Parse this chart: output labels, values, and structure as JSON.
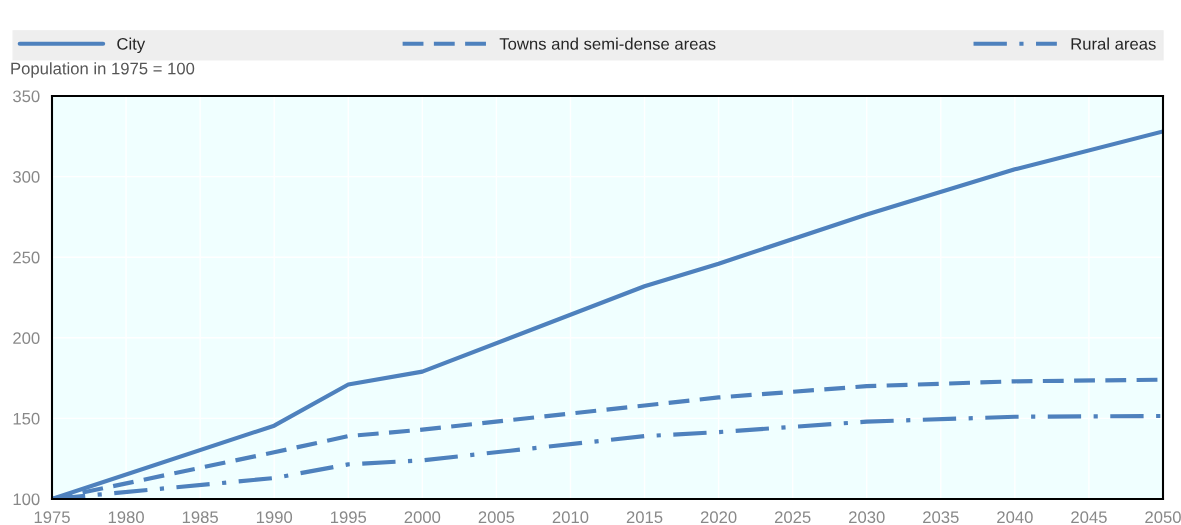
{
  "chart_data": {
    "type": "line",
    "ylabel": "Population in 1975 = 100",
    "x": [
      1975,
      1990,
      1995,
      2000,
      2015,
      2020,
      2030,
      2040,
      2050
    ],
    "series": [
      {
        "name": "City",
        "color": "#4e81bd",
        "line_style": "solid",
        "values": [
          100,
          145.5,
          171,
          179,
          232,
          246,
          276.5,
          304.5,
          328
        ]
      },
      {
        "name": "Towns and semi-dense areas",
        "color": "#4e81bd",
        "line_style": "dashed",
        "values": [
          100,
          129,
          139,
          143,
          158,
          163,
          170,
          173,
          174
        ]
      },
      {
        "name": "Rural areas",
        "color": "#4e81bd",
        "line_style": "dashdot",
        "values": [
          100,
          113,
          121.5,
          124,
          139,
          141.5,
          148,
          151,
          151.5
        ]
      }
    ],
    "xlim": [
      1975,
      2050
    ],
    "xticks": [
      1975,
      1980,
      1985,
      1990,
      1995,
      2000,
      2005,
      2010,
      2015,
      2020,
      2025,
      2030,
      2035,
      2040,
      2045,
      2050
    ],
    "ylim": [
      100,
      350
    ],
    "yticks": [
      100,
      150,
      200,
      250,
      300,
      350
    ],
    "grid": true,
    "legend": "top",
    "marker": "none"
  }
}
